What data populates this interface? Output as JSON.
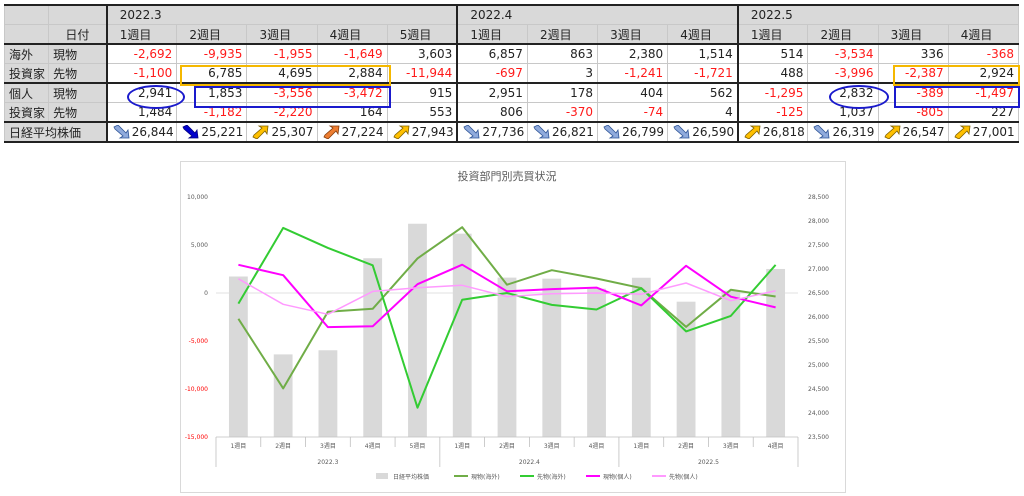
{
  "table": {
    "header_label": "日付",
    "months": [
      "2022.3",
      "2022.4",
      "2022.5"
    ],
    "weeks": [
      "1週目",
      "2週目",
      "3週目",
      "4週目",
      "5週目",
      "1週目",
      "2週目",
      "3週目",
      "4週目",
      "1週目",
      "2週目",
      "3週目",
      "4週目"
    ],
    "rows": [
      {
        "g": "海外",
        "t": "現物",
        "vals": [
          "-2,692",
          "-9,935",
          "-1,955",
          "-1,649",
          "3,603",
          "6,857",
          "863",
          "2,380",
          "1,514",
          "514",
          "-3,534",
          "336",
          "-368"
        ]
      },
      {
        "g": "投資家",
        "t": "先物",
        "vals": [
          "-1,100",
          "6,785",
          "4,695",
          "2,884",
          "-11,944",
          "-697",
          "3",
          "-1,241",
          "-1,721",
          "488",
          "-3,996",
          "-2,387",
          "2,924"
        ]
      },
      {
        "g": "個人",
        "t": "現物",
        "vals": [
          "2,941",
          "1,853",
          "-3,556",
          "-3,472",
          "915",
          "2,951",
          "178",
          "404",
          "562",
          "-1,295",
          "2,832",
          "-389",
          "-1,497"
        ]
      },
      {
        "g": "投資家",
        "t": "先物",
        "vals": [
          "1,484",
          "-1,182",
          "-2,220",
          "164",
          "553",
          "806",
          "-370",
          "-74",
          "4",
          "-125",
          "1,037",
          "-805",
          "227"
        ]
      }
    ],
    "nikkei_label": "日経平均株価",
    "nikkei": [
      "26,844",
      "25,221",
      "25,307",
      "27,224",
      "27,943",
      "27,736",
      "26,821",
      "26,799",
      "26,590",
      "26,818",
      "26,319",
      "26,547",
      "27,001"
    ],
    "nikkei_arrows": [
      "down-blue",
      "down-dark",
      "up-yellow",
      "up-orange",
      "up-yellow",
      "down-blue",
      "down-blue",
      "down-blue",
      "down-blue",
      "up-yellow",
      "down-blue",
      "up-yellow",
      "up-yellow"
    ]
  },
  "colors": {
    "neg_text": "#ff1a1a",
    "header_bg": "#d9d9d9",
    "highlight_orange": "#f5b800",
    "highlight_blue": "#1a1acc",
    "bar": "#d9d9d9",
    "gen_kaigai": "#70ad47",
    "saki_kaigai": "#33cc33",
    "gen_kojin": "#ff00ff",
    "saki_kojin": "#ff99ff"
  },
  "chart_data": {
    "type": "line",
    "title": "投資部門別売買状況",
    "categories": [
      "1週目",
      "2週目",
      "3週目",
      "4週目",
      "5週目",
      "1週目",
      "2週目",
      "3週目",
      "4週目",
      "1週目",
      "2週目",
      "3週目",
      "4週目"
    ],
    "groups": [
      "2022.3",
      "2022.4",
      "2022.5"
    ],
    "y_left": {
      "min": -15000,
      "max": 10000,
      "step": 5000,
      "ticks": [
        "10,000",
        "5,000",
        "0",
        "-5,000",
        "-10,000",
        "-15,000"
      ]
    },
    "y_right": {
      "min": 23500,
      "max": 28500,
      "step": 500,
      "ticks": [
        "28,500",
        "28,000",
        "27,500",
        "27,000",
        "26,500",
        "26,000",
        "25,500",
        "25,000",
        "24,500",
        "24,000",
        "23,500"
      ]
    },
    "legend_position": "bottom",
    "series": [
      {
        "name": "日経平均株価",
        "kind": "bar",
        "axis": "right",
        "values": [
          26844,
          25221,
          25307,
          27224,
          27943,
          27736,
          26821,
          26799,
          26590,
          26818,
          26319,
          26547,
          27001
        ]
      },
      {
        "name": "現物(海外)",
        "kind": "line",
        "axis": "left",
        "values": [
          -2692,
          -9935,
          -1955,
          -1649,
          3603,
          6857,
          863,
          2380,
          1514,
          514,
          -3534,
          336,
          -368
        ]
      },
      {
        "name": "先物(海外)",
        "kind": "line",
        "axis": "left",
        "values": [
          -1100,
          6785,
          4695,
          2884,
          -11944,
          -697,
          3,
          -1241,
          -1721,
          488,
          -3996,
          -2387,
          2924
        ]
      },
      {
        "name": "現物(個人)",
        "kind": "line",
        "axis": "left",
        "values": [
          2941,
          1853,
          -3556,
          -3472,
          915,
          2951,
          178,
          404,
          562,
          -1295,
          2832,
          -389,
          -1497
        ]
      },
      {
        "name": "先物(個人)",
        "kind": "line",
        "axis": "left",
        "values": [
          1484,
          -1182,
          -2220,
          164,
          553,
          806,
          -370,
          -74,
          4,
          -125,
          1037,
          -805,
          227
        ]
      }
    ]
  }
}
